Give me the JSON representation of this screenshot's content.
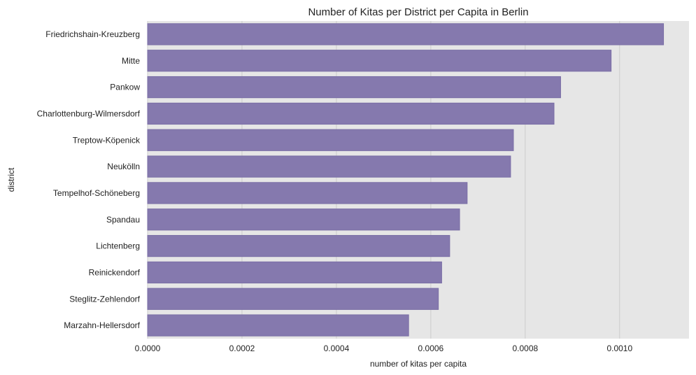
{
  "chart_data": {
    "type": "bar",
    "orientation": "horizontal",
    "title": "Number of Kitas per District per Capita in Berlin",
    "xlabel": "number of kitas per capita",
    "ylabel": "district",
    "categories": [
      "Friedrichshain-Kreuzberg",
      "Mitte",
      "Pankow",
      "Charlottenburg-Wilmersdorf",
      "Treptow-Köpenick",
      "Neukölln",
      "Tempelhof-Schöneberg",
      "Spandau",
      "Lichtenberg",
      "Reinickendorf",
      "Steglitz-Zehlendorf",
      "Marzahn-Hellersdorf"
    ],
    "values": [
      0.001093,
      0.000982,
      0.000875,
      0.000861,
      0.000775,
      0.000769,
      0.000677,
      0.000661,
      0.00064,
      0.000623,
      0.000616,
      0.000553
    ],
    "xlim": [
      0,
      0.001147
    ],
    "xticks": [
      0.0,
      0.0002,
      0.0004,
      0.0006,
      0.0008,
      0.001
    ],
    "xtick_labels": [
      "0.0000",
      "0.0002",
      "0.0004",
      "0.0006",
      "0.0008",
      "0.0010"
    ],
    "grid": true,
    "colors": {
      "bar": "#8579ae",
      "bar_edge": "#7a6ea6",
      "plot_background": "#e6e6e6",
      "grid": "#cccccc"
    }
  }
}
